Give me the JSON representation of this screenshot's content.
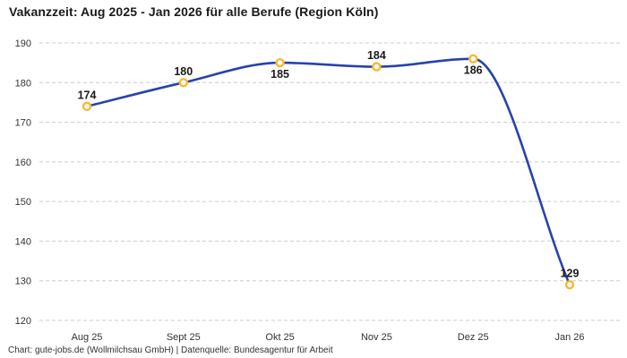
{
  "page": {
    "title": "Vakanzzeit: Aug 2025 - Jan 2026 für alle Berufe (Region Köln)",
    "footer": "Chart: gute-jobs.de (Wollmilchsau GmbH) | Datenquelle: Bundesagentur für Arbeit"
  },
  "colors": {
    "background": "#ffffff",
    "line": "#2743ab",
    "marker_stroke": "#f7b733",
    "marker_fill": "#ffffff",
    "grid": "#cccccc",
    "title_text": "#1a1a1a",
    "value_label_text": "#1a1a1a",
    "axis_text": "#333333",
    "footer_text": "#333333"
  },
  "chart_data": {
    "type": "line",
    "title": "Vakanzzeit: Aug 2025 - Jan 2026 für alle Berufe (Region Köln)",
    "categories": [
      "Aug 25",
      "Sept 25",
      "Okt 25",
      "Nov 25",
      "Dez 25",
      "Jan 26"
    ],
    "series": [
      {
        "name": "Vakanzzeit für alle Berufe (Region Köln)",
        "values": [
          174,
          180,
          185,
          184,
          186,
          129
        ]
      }
    ],
    "data_labels_shown": true,
    "data_label_positions": [
      "above",
      "above",
      "below",
      "above",
      "below",
      "above"
    ],
    "xlabel": "",
    "ylabel": "",
    "ylim": [
      120,
      190
    ],
    "yticks": [
      120,
      130,
      140,
      150,
      160,
      170,
      180,
      190
    ],
    "grid": "horizontal-dashed",
    "legend": "none",
    "curve": "smooth-monotone",
    "marker": "open-circle"
  }
}
